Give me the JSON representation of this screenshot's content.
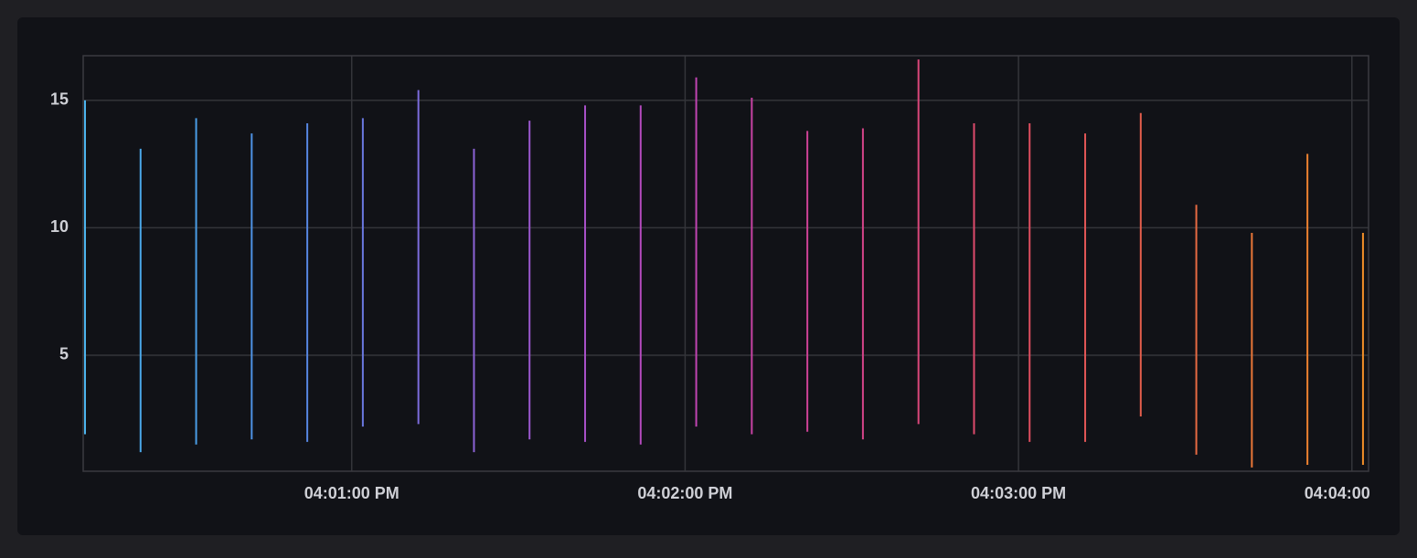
{
  "chart_data": {
    "type": "range",
    "x": [
      "04:00:12 PM",
      "04:00:22 PM",
      "04:00:32 PM",
      "04:00:42 PM",
      "04:00:52 PM",
      "04:01:02 PM",
      "04:01:12 PM",
      "04:01:22 PM",
      "04:01:32 PM",
      "04:01:42 PM",
      "04:01:52 PM",
      "04:02:02 PM",
      "04:02:12 PM",
      "04:02:22 PM",
      "04:02:32 PM",
      "04:02:42 PM",
      "04:02:52 PM",
      "04:03:02 PM",
      "04:03:12 PM",
      "04:03:22 PM",
      "04:03:32 PM",
      "04:03:42 PM",
      "04:03:52 PM",
      "04:04:02 PM"
    ],
    "low": [
      1.9,
      1.2,
      1.5,
      1.7,
      1.6,
      2.2,
      2.3,
      1.2,
      1.7,
      1.6,
      1.5,
      2.2,
      1.9,
      2.0,
      1.7,
      2.3,
      1.9,
      1.6,
      1.6,
      2.6,
      1.1,
      0.6,
      0.7,
      0.7
    ],
    "high": [
      15.0,
      13.1,
      14.3,
      13.7,
      14.1,
      14.3,
      15.4,
      13.1,
      14.2,
      14.8,
      14.8,
      15.9,
      15.1,
      13.8,
      13.9,
      16.6,
      14.1,
      14.1,
      13.7,
      14.5,
      10.9,
      9.8,
      12.9,
      9.8
    ],
    "colors": [
      "#4cb4ee",
      "#4aa8ea",
      "#4a9de6",
      "#4e92e4",
      "#5686e2",
      "#6a78e0",
      "#7c6cdc",
      "#8c62d6",
      "#9c58d0",
      "#a850c8",
      "#b44abe",
      "#c044b2",
      "#c842a4",
      "#ce4296",
      "#d44488",
      "#da467a",
      "#de4a6c",
      "#e04e60",
      "#e25656",
      "#e45e4c",
      "#e66a42",
      "#ea7638",
      "#ee8230",
      "#f28e28"
    ],
    "xlim": [
      "04:00:12 PM",
      "04:04:03 PM"
    ],
    "ylim": [
      0.45,
      16.75
    ],
    "xticks": [
      "04:01:00 PM",
      "04:02:00 PM",
      "04:03:00 PM",
      "04:04:00 PM"
    ],
    "yticks": [
      5,
      10,
      15
    ],
    "grid": true
  }
}
